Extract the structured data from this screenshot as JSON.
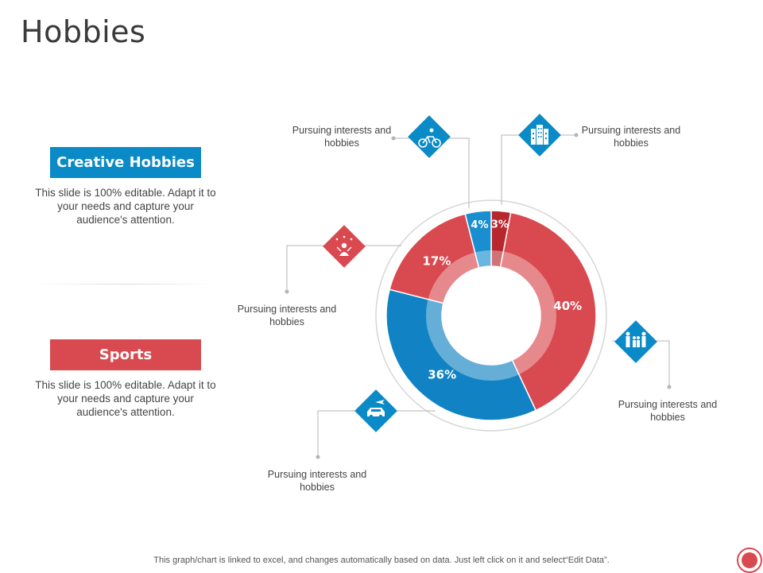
{
  "page": {
    "title": "Hobbies"
  },
  "categories": [
    {
      "label": "Creative Hobbies",
      "description": "This slide is 100% editable. Adapt it to your needs and capture your audience's attention.",
      "color": "#0a8ac6"
    },
    {
      "label": "Sports",
      "description": "This slide is 100% editable. Adapt it to your needs and capture your audience's attention.",
      "color": "#d94a50"
    }
  ],
  "callouts": [
    {
      "text": "Pursuing interests and hobbies",
      "icon": "cycling-icon"
    },
    {
      "text": "Pursuing interests and hobbies",
      "icon": "buildings-icon"
    },
    {
      "text": "Pursuing interests and hobbies",
      "icon": "juggling-person-icon"
    },
    {
      "text": "Pursuing interests and hobbies",
      "icon": "family-icon"
    },
    {
      "text": "Pursuing interests and hobbies",
      "icon": "car-travel-icon"
    }
  ],
  "chart_data": {
    "type": "pie",
    "variant": "donut",
    "title": "",
    "slices": [
      {
        "value": 3,
        "label": "3%",
        "color": "#b8272e"
      },
      {
        "value": 40,
        "label": "40%",
        "color": "#d94a50"
      },
      {
        "value": 36,
        "label": "36%",
        "color": "#1183c4"
      },
      {
        "value": 17,
        "label": "17%",
        "color": "#d94a50"
      },
      {
        "value": 4,
        "label": "4%",
        "color": "#1a8fcf"
      }
    ],
    "start_angle_deg": 0,
    "direction": "clockwise"
  },
  "footer": {
    "note": "This graph/chart is linked to excel, and changes automatically based on data. Just left click on it and select“Edit Data”."
  },
  "colors": {
    "blue": "#0a8ac6",
    "red": "#d94a50",
    "dark_red": "#b8272e"
  }
}
